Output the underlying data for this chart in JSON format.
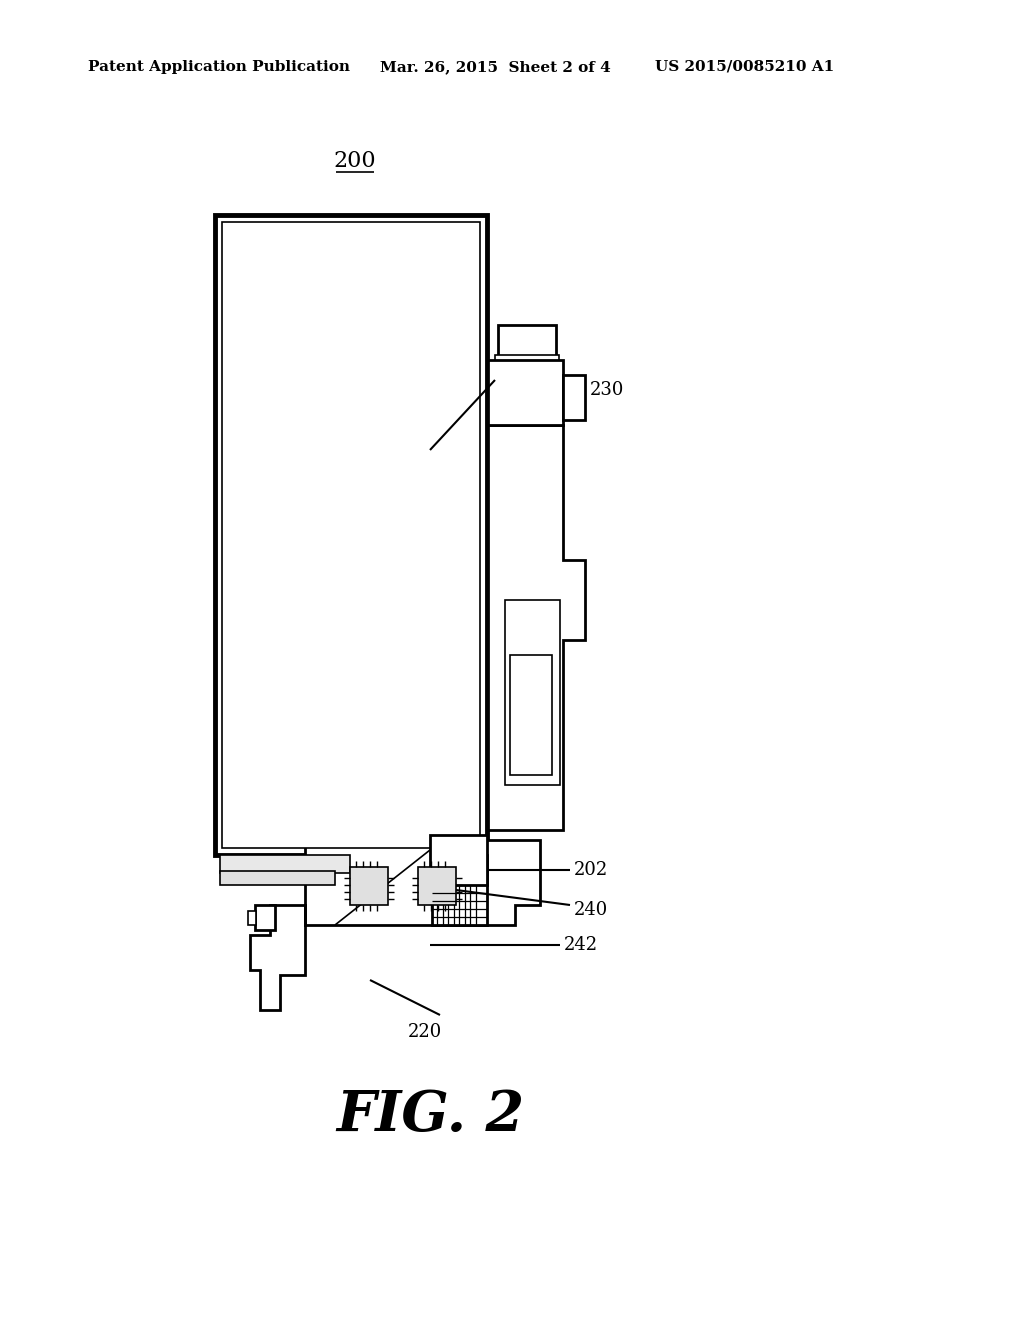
{
  "bg_color": "#ffffff",
  "lc": "#000000",
  "header_left": "Patent Application Publication",
  "header_mid": "Mar. 26, 2015  Sheet 2 of 4",
  "header_right": "US 2015/0085210 A1",
  "figure_label": "FIG. 2",
  "ref_200": "200",
  "ref_202": "202",
  "ref_220": "220",
  "ref_230": "230",
  "ref_240": "240",
  "ref_242": "242",
  "lw_thin": 1.2,
  "lw_med": 2.0,
  "lw_thick": 3.5
}
